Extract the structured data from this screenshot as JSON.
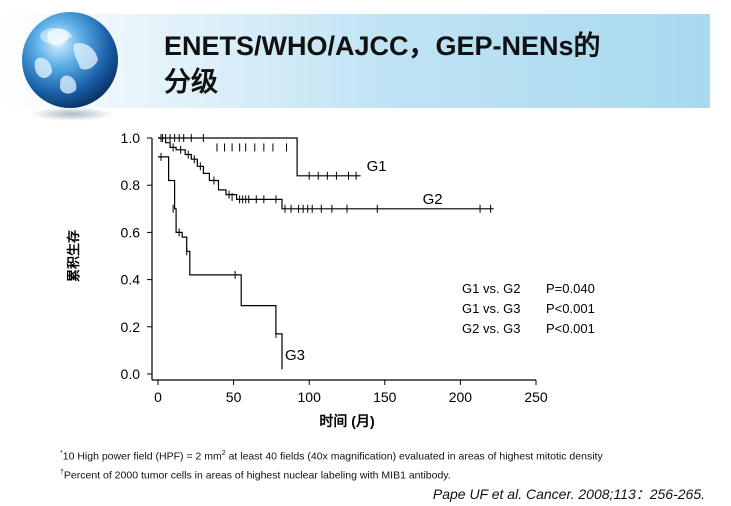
{
  "slide": {
    "title_line1": "ENETS/WHO/AJCC，GEP-NENs的",
    "title_line2": "分级"
  },
  "chart_data": {
    "type": "line",
    "subtype": "kaplan-meier-step",
    "xlabel": "时间 (月)",
    "ylabel": "累积生存",
    "xlim": [
      0,
      250
    ],
    "ylim": [
      0.0,
      1.0
    ],
    "xticks": [
      0,
      50,
      100,
      150,
      200,
      250
    ],
    "yticks": [
      0.0,
      0.2,
      0.4,
      0.6,
      0.8,
      1.0
    ],
    "xtick_labels": [
      "0",
      "50",
      "100",
      "150",
      "200",
      "250"
    ],
    "ytick_labels": [
      "0.0",
      "0.2",
      "0.4",
      "0.6",
      "0.8",
      "1.0"
    ],
    "grid": false,
    "series": [
      {
        "name": "G1",
        "steps": [
          [
            0,
            1.0
          ],
          [
            92,
            1.0
          ],
          [
            92,
            0.84
          ],
          [
            134,
            0.84
          ]
        ],
        "censors": [
          [
            2,
            1.0
          ],
          [
            5,
            1.0
          ],
          [
            8,
            1.0
          ],
          [
            11,
            1.0
          ],
          [
            14,
            1.0
          ],
          [
            17,
            1.0
          ],
          [
            22,
            1.0
          ],
          [
            30,
            1.0
          ],
          [
            39,
            0.96
          ],
          [
            44,
            0.96
          ],
          [
            49,
            0.96
          ],
          [
            54,
            0.96
          ],
          [
            58,
            0.96
          ],
          [
            64,
            0.96
          ],
          [
            70,
            0.96
          ],
          [
            76,
            0.96
          ],
          [
            85,
            0.96
          ],
          [
            100,
            0.84
          ],
          [
            106,
            0.84
          ],
          [
            112,
            0.84
          ],
          [
            118,
            0.84
          ],
          [
            126,
            0.84
          ],
          [
            131,
            0.84
          ]
        ],
        "label_at": [
          138,
          0.86
        ]
      },
      {
        "name": "G2",
        "steps": [
          [
            0,
            1.0
          ],
          [
            5,
            1.0
          ],
          [
            5,
            0.98
          ],
          [
            8,
            0.98
          ],
          [
            8,
            0.96
          ],
          [
            12,
            0.96
          ],
          [
            12,
            0.95
          ],
          [
            18,
            0.95
          ],
          [
            18,
            0.93
          ],
          [
            22,
            0.93
          ],
          [
            22,
            0.91
          ],
          [
            26,
            0.91
          ],
          [
            26,
            0.88
          ],
          [
            30,
            0.88
          ],
          [
            30,
            0.85
          ],
          [
            34,
            0.85
          ],
          [
            34,
            0.82
          ],
          [
            40,
            0.82
          ],
          [
            40,
            0.78
          ],
          [
            45,
            0.78
          ],
          [
            45,
            0.76
          ],
          [
            52,
            0.76
          ],
          [
            52,
            0.74
          ],
          [
            82,
            0.74
          ],
          [
            82,
            0.7
          ],
          [
            222,
            0.7
          ]
        ],
        "censors": [
          [
            3,
            1.0
          ],
          [
            10,
            0.96
          ],
          [
            15,
            0.95
          ],
          [
            20,
            0.93
          ],
          [
            24,
            0.91
          ],
          [
            28,
            0.88
          ],
          [
            37,
            0.82
          ],
          [
            47,
            0.76
          ],
          [
            49,
            0.75
          ],
          [
            54,
            0.74
          ],
          [
            56,
            0.74
          ],
          [
            58,
            0.74
          ],
          [
            60,
            0.74
          ],
          [
            65,
            0.74
          ],
          [
            70,
            0.74
          ],
          [
            78,
            0.74
          ],
          [
            84,
            0.7
          ],
          [
            88,
            0.7
          ],
          [
            93,
            0.7
          ],
          [
            96,
            0.7
          ],
          [
            99,
            0.7
          ],
          [
            102,
            0.7
          ],
          [
            108,
            0.7
          ],
          [
            115,
            0.7
          ],
          [
            125,
            0.7
          ],
          [
            145,
            0.7
          ],
          [
            213,
            0.7
          ],
          [
            220,
            0.7
          ]
        ],
        "label_at": [
          175,
          0.72
        ]
      },
      {
        "name": "G3",
        "steps": [
          [
            0,
            0.92
          ],
          [
            7,
            0.92
          ],
          [
            7,
            0.82
          ],
          [
            11,
            0.82
          ],
          [
            11,
            0.7
          ],
          [
            12,
            0.7
          ],
          [
            12,
            0.6
          ],
          [
            16,
            0.6
          ],
          [
            16,
            0.58
          ],
          [
            19,
            0.58
          ],
          [
            19,
            0.52
          ],
          [
            21,
            0.52
          ],
          [
            21,
            0.42
          ],
          [
            55,
            0.42
          ],
          [
            55,
            0.29
          ],
          [
            78,
            0.29
          ],
          [
            78,
            0.17
          ],
          [
            82,
            0.17
          ],
          [
            82,
            0.02
          ]
        ],
        "censors": [
          [
            2,
            0.92
          ],
          [
            10,
            0.7
          ],
          [
            14,
            0.6
          ],
          [
            19,
            0.52
          ],
          [
            51,
            0.42
          ],
          [
            78,
            0.17
          ]
        ],
        "label_at": [
          84,
          0.06
        ]
      }
    ],
    "annotations": [
      {
        "label": "G1 vs. G2",
        "p": "P=0.040"
      },
      {
        "label": "G1 vs. G3",
        "p": "P<0.001"
      },
      {
        "label": "G2 vs. G3",
        "p": "P<0.001"
      }
    ]
  },
  "footnotes": {
    "line1_sup": "*",
    "line1_a": "10 High power field (HPF) = 2 mm",
    "line1_sup2": "2",
    "line1_b": " at least 40 fields (40x magnification) evaluated in areas of highest mitotic density",
    "line2_sup": "†",
    "line2": "Percent of 2000 tumor cells in areas of highest nuclear labeling with MIB1 antibody."
  },
  "citation": "Pape UF et al. Cancer. 2008;113：256-265."
}
